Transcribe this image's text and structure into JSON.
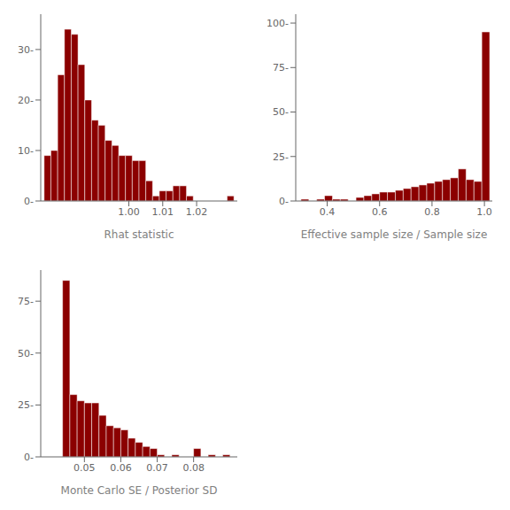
{
  "chart_data": [
    {
      "type": "histogram",
      "xlabel": "Rhat statistic",
      "color": "#8B0000",
      "bins": [
        0.975,
        0.977,
        0.979,
        0.981,
        0.983,
        0.985,
        0.987,
        0.989,
        0.991,
        0.993,
        0.995,
        0.997,
        0.999,
        1.001,
        1.003,
        1.005,
        1.007,
        1.009,
        1.011,
        1.013,
        1.015,
        1.017,
        1.019,
        1.021,
        1.023,
        1.025,
        1.027,
        1.029,
        1.031
      ],
      "values": [
        9,
        10,
        25,
        34,
        33,
        27,
        20,
        16,
        15,
        12,
        11,
        9,
        9,
        8,
        8,
        4,
        1,
        2,
        2,
        3,
        3,
        1,
        0,
        0,
        0,
        0,
        0,
        1
      ],
      "xlim": [
        0.974,
        1.032
      ],
      "ylim": [
        0,
        37
      ],
      "xticks": [
        {
          "value": 1.0,
          "label": "1.00"
        },
        1.01,
        1.02
      ],
      "yticks": [
        {
          "value": 0,
          "label": "0-"
        },
        {
          "value": 10,
          "label": "10-"
        },
        {
          "value": 20,
          "label": "20-"
        },
        {
          "value": 30,
          "label": "30-"
        }
      ]
    },
    {
      "type": "histogram",
      "xlabel": "Effective sample size / Sample size",
      "color": "#8B0000",
      "bins": [
        0.3,
        0.33,
        0.36,
        0.39,
        0.42,
        0.45,
        0.48,
        0.51,
        0.54,
        0.57,
        0.6,
        0.63,
        0.66,
        0.69,
        0.72,
        0.75,
        0.78,
        0.81,
        0.84,
        0.87,
        0.9,
        0.93,
        0.96,
        0.99,
        1.02
      ],
      "values": [
        1,
        0,
        1,
        3,
        1,
        1,
        0,
        2,
        3,
        4,
        5,
        5,
        6,
        7,
        8,
        9,
        10,
        11,
        12,
        13,
        18,
        12,
        11,
        95
      ],
      "xlim": [
        0.28,
        1.03
      ],
      "ylim": [
        0,
        105
      ],
      "xticks": [
        0.4,
        0.6,
        0.8,
        {
          "value": 1.0,
          "label": "1.0"
        }
      ],
      "yticks": [
        {
          "value": 0,
          "label": "0-"
        },
        {
          "value": 25,
          "label": "25-"
        },
        {
          "value": 50,
          "label": "50-"
        },
        {
          "value": 75,
          "label": "75-"
        },
        {
          "value": 100,
          "label": "100-"
        }
      ]
    },
    {
      "type": "histogram",
      "xlabel": "Monte Carlo SE / Posterior SD",
      "color": "#8B0000",
      "bins": [
        0.04,
        0.042,
        0.044,
        0.046,
        0.048,
        0.05,
        0.052,
        0.054,
        0.056,
        0.058,
        0.06,
        0.062,
        0.064,
        0.066,
        0.068,
        0.07,
        0.072,
        0.074,
        0.076,
        0.078,
        0.08,
        0.082,
        0.084,
        0.086,
        0.088,
        0.09
      ],
      "values": [
        0,
        0,
        85,
        30,
        27,
        26,
        26,
        20,
        15,
        14,
        13,
        9,
        7,
        5,
        4,
        1,
        0,
        1,
        0,
        0,
        4,
        0,
        1,
        0,
        1
      ],
      "xlim": [
        0.038,
        0.092
      ],
      "ylim": [
        0,
        90
      ],
      "xticks": [
        0.05,
        0.06,
        0.07,
        0.08
      ],
      "yticks": [
        {
          "value": 0,
          "label": "0-"
        },
        {
          "value": 25,
          "label": "25-"
        },
        {
          "value": 50,
          "label": "50-"
        },
        {
          "value": 75,
          "label": "75-"
        }
      ]
    }
  ]
}
